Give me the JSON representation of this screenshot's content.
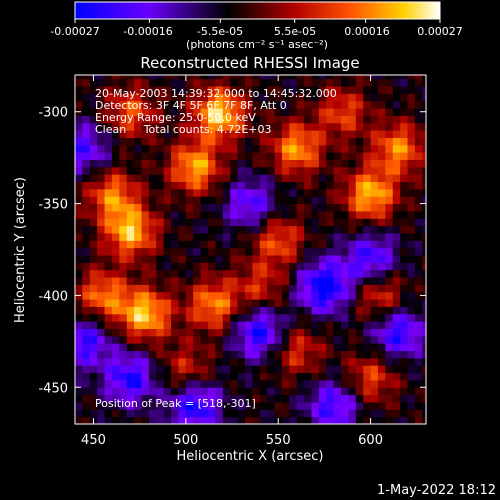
{
  "colorbar": {
    "ticks": [
      "-0.00027",
      "-0.00016",
      "-5.5e-05",
      "5.5e-05",
      "0.00016",
      "0.00027"
    ],
    "tick_values": [
      -0.00027,
      -0.00016,
      -5.5e-05,
      5.5e-05,
      0.00016,
      0.00027
    ],
    "range": [
      -0.00027,
      0.00027
    ],
    "units_label": "(photons cm⁻² s⁻¹ asec⁻²)",
    "colormap": [
      "#0000ff",
      "#7a00ff",
      "#000000",
      "#b20000",
      "#ff5a00",
      "#ffd000",
      "#ffffff"
    ]
  },
  "chart_data": {
    "type": "heatmap",
    "title": "Reconstructed RHESSI Image",
    "xlabel": "Heliocentric X (arcsec)",
    "ylabel": "Heliocentric Y (arcsec)",
    "xlim": [
      440,
      630
    ],
    "ylim": [
      -470,
      -280
    ],
    "xticks": [
      "450",
      "500",
      "550",
      "600"
    ],
    "xtick_values": [
      450,
      500,
      550,
      600
    ],
    "yticks": [
      "-300",
      "-350",
      "-400",
      "-450"
    ],
    "ytick_values": [
      -300,
      -350,
      -400,
      -450
    ],
    "info_lines": [
      "20-May-2003 14:39:32.000 to 14:45:32.000",
      "Detectors: 3F 4F 5F 6F 7F 8F, Att 0",
      "Energy Range: 25.0-50.0 keV",
      "Clean     Total counts: 4.72E+03"
    ],
    "peak_label": "Position of Peak = [518,-301]",
    "peak": [
      518,
      -301
    ],
    "hot_sources": [
      {
        "x": 518,
        "y": -301,
        "v": 1.0
      },
      {
        "x": 505,
        "y": -330,
        "v": 0.85
      },
      {
        "x": 470,
        "y": -365,
        "v": 0.9
      },
      {
        "x": 460,
        "y": -345,
        "v": 0.7
      },
      {
        "x": 478,
        "y": -410,
        "v": 0.95
      },
      {
        "x": 455,
        "y": -400,
        "v": 0.7
      },
      {
        "x": 515,
        "y": -405,
        "v": 0.75
      },
      {
        "x": 560,
        "y": -320,
        "v": 0.8
      },
      {
        "x": 600,
        "y": -345,
        "v": 0.9
      },
      {
        "x": 615,
        "y": -320,
        "v": 0.75
      },
      {
        "x": 585,
        "y": -300,
        "v": 0.55
      },
      {
        "x": 470,
        "y": -300,
        "v": 0.6
      },
      {
        "x": 550,
        "y": -370,
        "v": 0.6
      },
      {
        "x": 605,
        "y": -400,
        "v": 0.55
      },
      {
        "x": 560,
        "y": -430,
        "v": 0.5
      },
      {
        "x": 500,
        "y": -440,
        "v": 0.45
      },
      {
        "x": 600,
        "y": -445,
        "v": 0.55
      },
      {
        "x": 540,
        "y": -395,
        "v": 0.45
      }
    ],
    "cold_sources": [
      {
        "x": 575,
        "y": -395,
        "v": -0.95
      },
      {
        "x": 540,
        "y": -420,
        "v": -0.8
      },
      {
        "x": 600,
        "y": -380,
        "v": -0.7
      },
      {
        "x": 470,
        "y": -445,
        "v": -0.75
      },
      {
        "x": 505,
        "y": -460,
        "v": -0.8
      },
      {
        "x": 445,
        "y": -425,
        "v": -0.7
      },
      {
        "x": 580,
        "y": -460,
        "v": -0.7
      },
      {
        "x": 535,
        "y": -350,
        "v": -0.6
      },
      {
        "x": 445,
        "y": -320,
        "v": -0.6
      },
      {
        "x": 615,
        "y": -420,
        "v": -0.75
      }
    ]
  },
  "footer": {
    "timestamp": "1-May-2022 18:12"
  }
}
